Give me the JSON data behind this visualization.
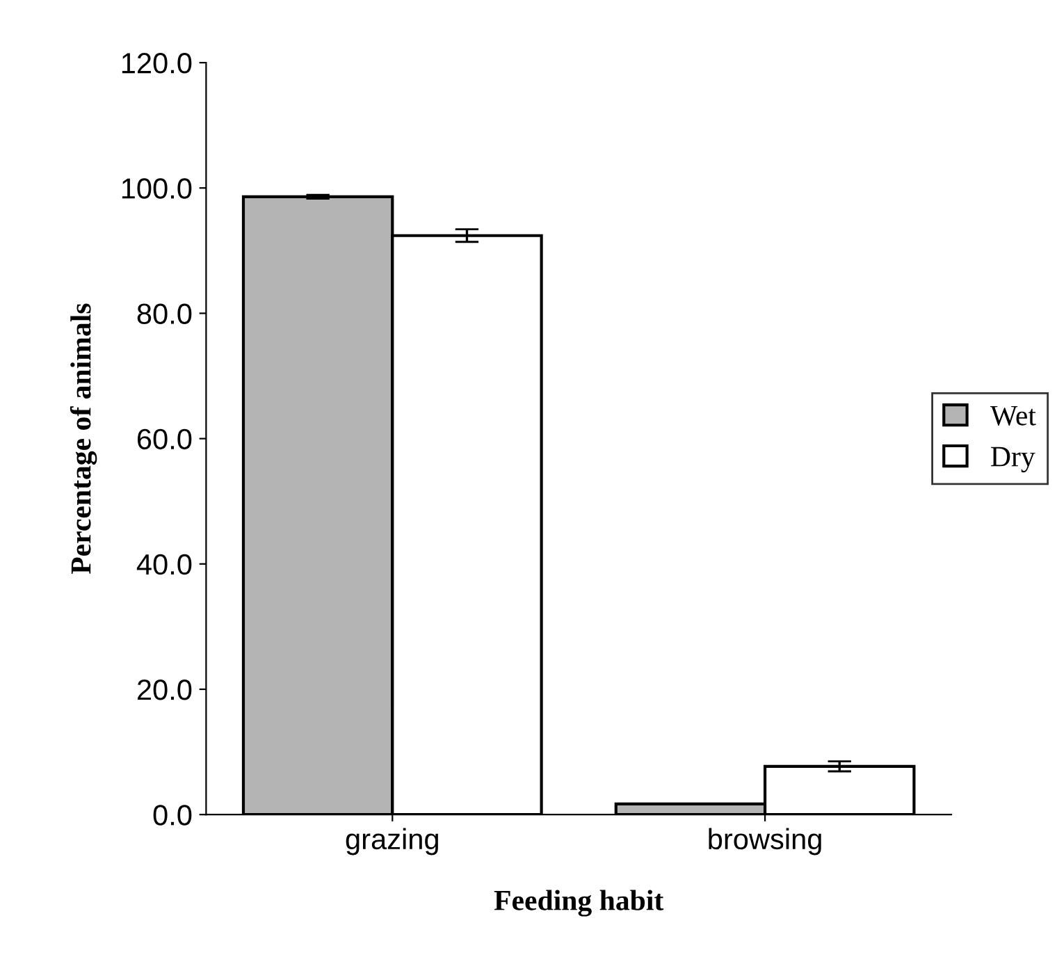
{
  "chart_data": {
    "type": "bar",
    "xlabel": "Feeding habit",
    "ylabel": "Percentage of animals",
    "categories": [
      "grazing",
      "browsing"
    ],
    "series": [
      {
        "name": "Wet",
        "color": "#b4b4b4",
        "values": [
          98.6,
          1.7
        ],
        "errors": [
          0.3,
          null
        ]
      },
      {
        "name": "Dry",
        "color": "#ffffff",
        "values": [
          92.4,
          7.7
        ],
        "errors": [
          1.0,
          0.8
        ]
      }
    ],
    "ylim": [
      0,
      120
    ],
    "yticks": [
      {
        "value": 0,
        "label": "0.0"
      },
      {
        "value": 20,
        "label": "20.0"
      },
      {
        "value": 40,
        "label": "40.0"
      },
      {
        "value": 60,
        "label": "60.0"
      },
      {
        "value": 80,
        "label": "80.0"
      },
      {
        "value": 100,
        "label": "100.0"
      },
      {
        "value": 120,
        "label": "120.0"
      }
    ],
    "grid": false,
    "legend": "right"
  }
}
